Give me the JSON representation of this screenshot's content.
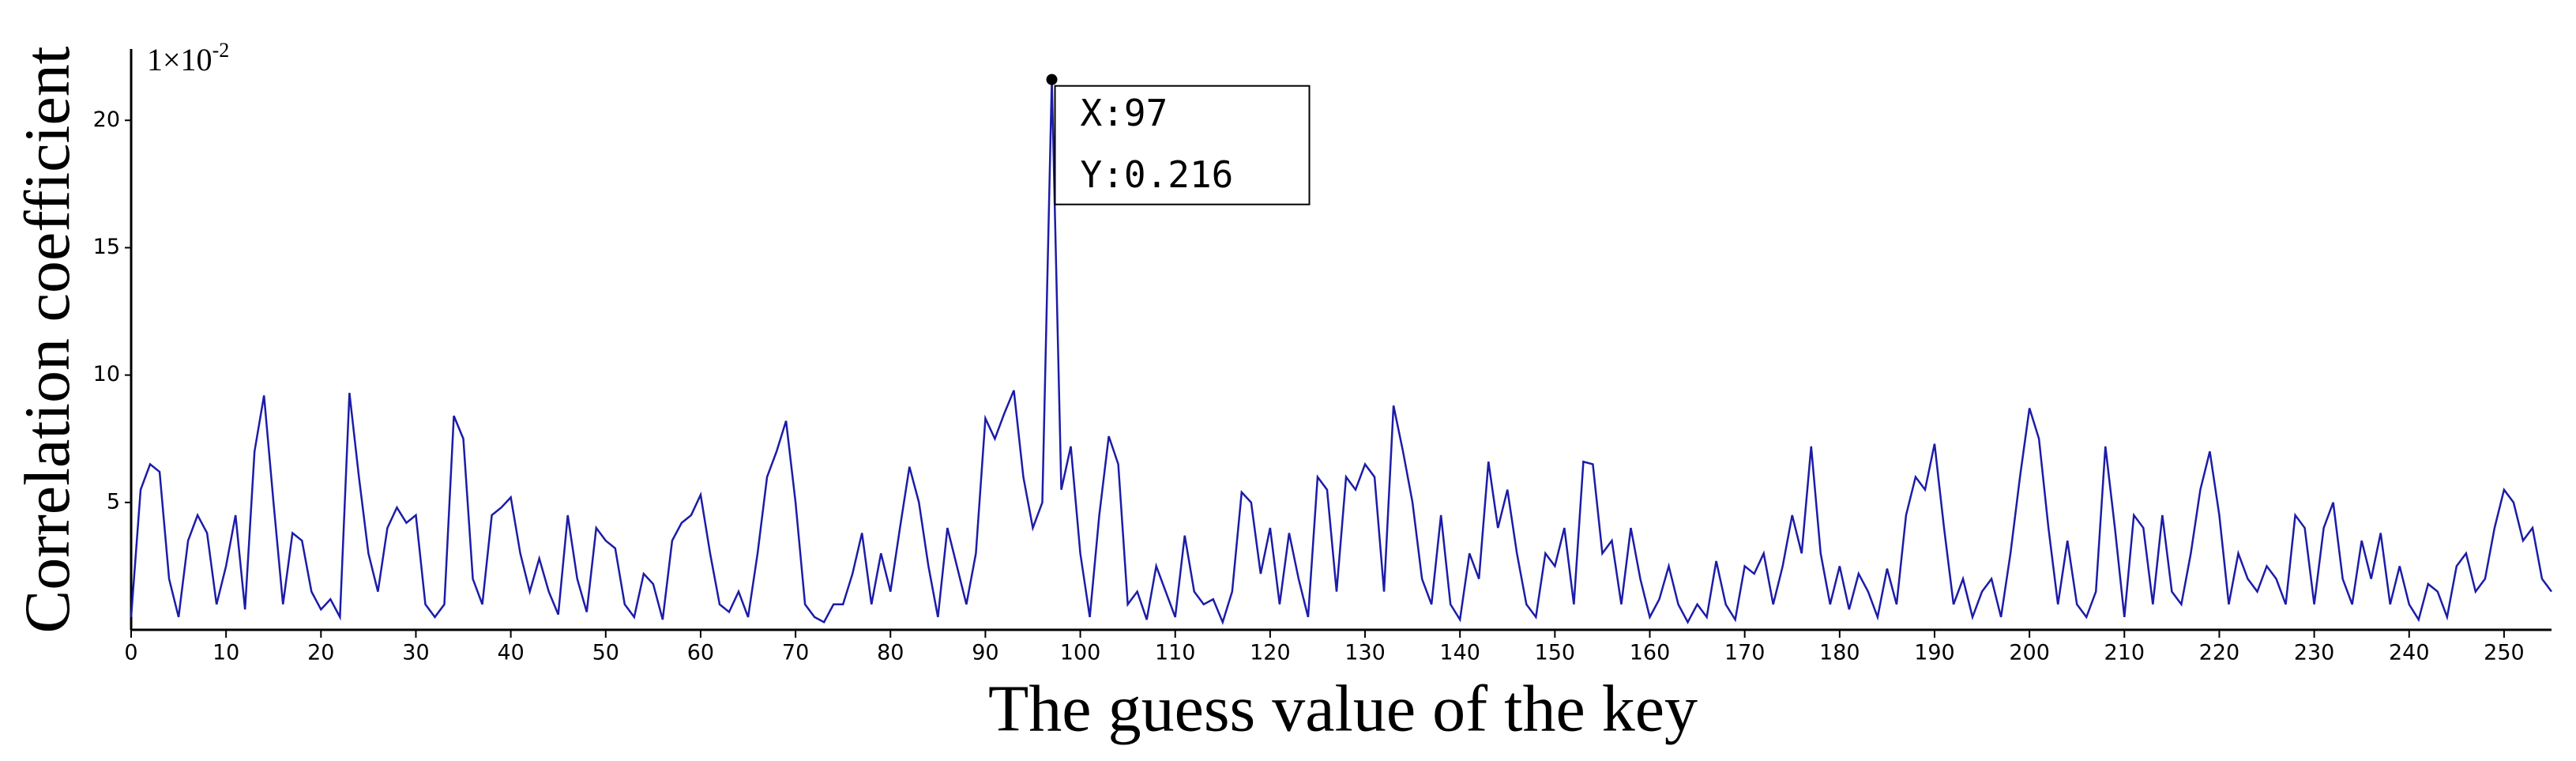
{
  "chart_data": {
    "type": "line",
    "xlabel": "The guess value  of  the key",
    "ylabel": "Correlation coefficient",
    "y_multiplier": {
      "base": "1×10",
      "exponent": "-2"
    },
    "annotation": {
      "x_text": "X:97",
      "y_text": "Y:0.216",
      "x": 97,
      "y": 21.6
    },
    "xlim": [
      0,
      255
    ],
    "xticks": [
      0,
      10,
      20,
      30,
      40,
      50,
      60,
      70,
      80,
      90,
      100,
      110,
      120,
      130,
      140,
      150,
      160,
      170,
      180,
      190,
      200,
      210,
      220,
      230,
      240,
      250
    ],
    "ylim": [
      0,
      22.8
    ],
    "yticks": [
      5,
      10,
      15,
      20
    ],
    "series": [
      {
        "name": "correlation",
        "color": "#1c1ca8",
        "x": [
          0,
          1,
          2,
          3,
          4,
          5,
          6,
          7,
          8,
          9,
          10,
          11,
          12,
          13,
          14,
          15,
          16,
          17,
          18,
          19,
          20,
          21,
          22,
          23,
          24,
          25,
          26,
          27,
          28,
          29,
          30,
          31,
          32,
          33,
          34,
          35,
          36,
          37,
          38,
          39,
          40,
          41,
          42,
          43,
          44,
          45,
          46,
          47,
          48,
          49,
          50,
          51,
          52,
          53,
          54,
          55,
          56,
          57,
          58,
          59,
          60,
          61,
          62,
          63,
          64,
          65,
          66,
          67,
          68,
          69,
          70,
          71,
          72,
          73,
          74,
          75,
          76,
          77,
          78,
          79,
          80,
          81,
          82,
          83,
          84,
          85,
          86,
          87,
          88,
          89,
          90,
          91,
          92,
          93,
          94,
          95,
          96,
          97,
          98,
          99,
          100,
          101,
          102,
          103,
          104,
          105,
          106,
          107,
          108,
          109,
          110,
          111,
          112,
          113,
          114,
          115,
          116,
          117,
          118,
          119,
          120,
          121,
          122,
          123,
          124,
          125,
          126,
          127,
          128,
          129,
          130,
          131,
          132,
          133,
          134,
          135,
          136,
          137,
          138,
          139,
          140,
          141,
          142,
          143,
          144,
          145,
          146,
          147,
          148,
          149,
          150,
          151,
          152,
          153,
          154,
          155,
          156,
          157,
          158,
          159,
          160,
          161,
          162,
          163,
          164,
          165,
          166,
          167,
          168,
          169,
          170,
          171,
          172,
          173,
          174,
          175,
          176,
          177,
          178,
          179,
          180,
          181,
          182,
          183,
          184,
          185,
          186,
          187,
          188,
          189,
          190,
          191,
          192,
          193,
          194,
          195,
          196,
          197,
          198,
          199,
          200,
          201,
          202,
          203,
          204,
          205,
          206,
          207,
          208,
          209,
          210,
          211,
          212,
          213,
          214,
          215,
          216,
          217,
          218,
          219,
          220,
          221,
          222,
          223,
          224,
          225,
          226,
          227,
          228,
          229,
          230,
          231,
          232,
          233,
          234,
          235,
          236,
          237,
          238,
          239,
          240,
          241,
          242,
          243,
          244,
          245,
          246,
          247,
          248,
          249,
          250,
          251,
          252,
          253,
          254,
          255
        ],
        "values": [
          0.5,
          5.5,
          6.5,
          6.2,
          2,
          0.5,
          3.5,
          4.5,
          3.8,
          1,
          2.5,
          4.5,
          0.8,
          7,
          9.2,
          5,
          1,
          3.8,
          3.5,
          1.5,
          0.8,
          1.2,
          0.5,
          9.3,
          6,
          3,
          1.5,
          4,
          4.8,
          4.2,
          4.5,
          1,
          0.5,
          1,
          8.4,
          7.5,
          2,
          1,
          4.5,
          4.8,
          5.2,
          3,
          1.5,
          2.8,
          1.5,
          0.6,
          4.5,
          2,
          0.7,
          4,
          3.5,
          3.2,
          1,
          0.5,
          2.2,
          1.8,
          0.4,
          3.5,
          4.2,
          4.5,
          5.3,
          3,
          1,
          0.7,
          1.5,
          0.5,
          3,
          6,
          7,
          8.2,
          5,
          1,
          0.5,
          0.3,
          1,
          1,
          2.2,
          3.8,
          1,
          3,
          1.5,
          4,
          6.4,
          5,
          2.5,
          0.5,
          4,
          2.5,
          1,
          3,
          8.3,
          7.5,
          8.5,
          9.4,
          6,
          4,
          5,
          21.6,
          5.5,
          7.2,
          3,
          0.5,
          4.5,
          7.6,
          6.5,
          1,
          1.5,
          0.4,
          2.5,
          1.5,
          0.5,
          3.7,
          1.5,
          1,
          1.2,
          0.3,
          1.5,
          5.4,
          5,
          2.2,
          4,
          1,
          3.8,
          2,
          0.5,
          6,
          5.5,
          1.5,
          6,
          5.5,
          6.5,
          6,
          1.5,
          8.8,
          7,
          5,
          2,
          1,
          4.5,
          1,
          0.4,
          3,
          2,
          6.6,
          4,
          5.5,
          3,
          1,
          0.5,
          3,
          2.5,
          4,
          1,
          6.6,
          6.5,
          3,
          3.5,
          1,
          4,
          2,
          0.5,
          1.2,
          2.5,
          1,
          0.3,
          1,
          0.5,
          2.7,
          1,
          0.4,
          2.5,
          2.2,
          3,
          1,
          2.5,
          4.5,
          3,
          7.2,
          3,
          1,
          2.5,
          0.8,
          2.2,
          1.5,
          0.5,
          2.4,
          1,
          4.5,
          6,
          5.5,
          7.3,
          4,
          1,
          2,
          0.5,
          1.5,
          2,
          0.5,
          3,
          6,
          8.7,
          7.5,
          4,
          1,
          3.5,
          1,
          0.5,
          1.5,
          7.2,
          4,
          0.5,
          4.5,
          4,
          1,
          4.5,
          1.5,
          1,
          3,
          5.5,
          7,
          4.5,
          1,
          3,
          2,
          1.5,
          2.5,
          2,
          1,
          4.5,
          4,
          1,
          4,
          5,
          2,
          1,
          3.5,
          2,
          3.8,
          1,
          2.5,
          1,
          0.4,
          1.8,
          1.5,
          0.5,
          2.5,
          3,
          1.5,
          2,
          4,
          5.5,
          5,
          3.5,
          4,
          2,
          1.5
        ]
      }
    ]
  }
}
